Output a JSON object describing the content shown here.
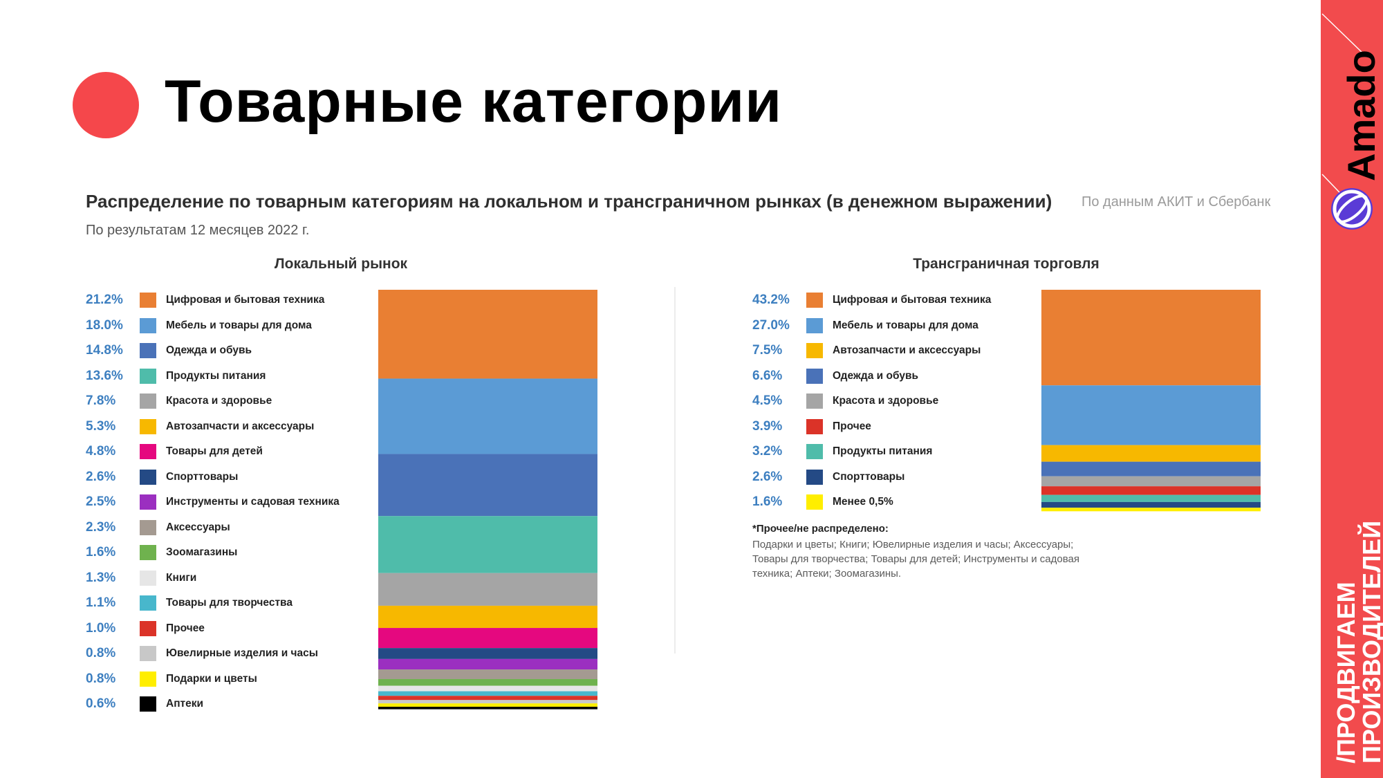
{
  "header": {
    "title": "Товарные категории",
    "subtitle": "Распределение по товарным категориям на локальном и трансграничном рынках (в денежном выражении)",
    "source": "По данным АКИТ и Сбербанк",
    "period": "По результатам 12 месяцев 2022 г."
  },
  "brand": {
    "logo_text": "Amado",
    "tagline_line1": "/ПРОДВИГАЕМ",
    "tagline_line2": "ПРОИЗВОДИТЕЛЕЙ",
    "accent_color": "#f24b4d"
  },
  "note": {
    "heading": "*Прочее/не распределено:",
    "body": "Подарки и цветы; Книги; Ювелирные изделия и часы; Аксессуары; Товары для творчества; Товары для детей; Инструменты и садовая техника; Аптеки; Зоомагазины."
  },
  "chart_data": [
    {
      "type": "bar",
      "stacked": true,
      "title": "Локальный рынок",
      "unit": "%",
      "series": [
        {
          "name": "Цифровая и бытовая техника",
          "value": 21.2,
          "label": "21.2%",
          "color": "#e97f33"
        },
        {
          "name": "Мебель и товары для дома",
          "value": 18.0,
          "label": "18.0%",
          "color": "#5b9bd5"
        },
        {
          "name": "Одежда и обувь",
          "value": 14.8,
          "label": "14.8%",
          "color": "#4a72b8"
        },
        {
          "name": "Продукты питания",
          "value": 13.6,
          "label": "13.6%",
          "color": "#4fbcaa"
        },
        {
          "name": "Красота и здоровье",
          "value": 7.8,
          "label": "7.8%",
          "color": "#a5a5a5"
        },
        {
          "name": "Автозапчасти и аксессуары",
          "value": 5.3,
          "label": "5.3%",
          "color": "#f7b800"
        },
        {
          "name": "Товары для детей",
          "value": 4.8,
          "label": "4.8%",
          "color": "#e5087f"
        },
        {
          "name": "Спорттовары",
          "value": 2.6,
          "label": "2.6%",
          "color": "#244a85"
        },
        {
          "name": "Инструменты и садовая техника",
          "value": 2.5,
          "label": "2.5%",
          "color": "#9b2fc0"
        },
        {
          "name": "Аксессуары",
          "value": 2.3,
          "label": "2.3%",
          "color": "#a49a91"
        },
        {
          "name": "Зоомагазины",
          "value": 1.6,
          "label": "1.6%",
          "color": "#6fb24e"
        },
        {
          "name": "Книги",
          "value": 1.3,
          "label": "1.3%",
          "color": "#e6e6e6"
        },
        {
          "name": "Товары для творчества",
          "value": 1.1,
          "label": "1.1%",
          "color": "#48b7cc"
        },
        {
          "name": "Прочее",
          "value": 1.0,
          "label": "1.0%",
          "color": "#db3328"
        },
        {
          "name": "Ювелирные изделия и часы",
          "value": 0.8,
          "label": "0.8%",
          "color": "#c8c8c8"
        },
        {
          "name": "Подарки и цветы",
          "value": 0.8,
          "label": "0.8%",
          "color": "#ffee00"
        },
        {
          "name": "Аптеки",
          "value": 0.6,
          "label": "0.6%",
          "color": "#000000"
        }
      ]
    },
    {
      "type": "bar",
      "stacked": true,
      "title": "Трансграничная торговля",
      "unit": "%",
      "series": [
        {
          "name": "Цифровая и бытовая техника",
          "value": 43.2,
          "label": "43.2%",
          "color": "#e97f33"
        },
        {
          "name": "Мебель и товары для дома",
          "value": 27.0,
          "label": "27.0%",
          "color": "#5b9bd5"
        },
        {
          "name": "Автозапчасти и аксессуары",
          "value": 7.5,
          "label": "7.5%",
          "color": "#f7b800"
        },
        {
          "name": "Одежда и обувь",
          "value": 6.6,
          "label": "6.6%",
          "color": "#4a72b8"
        },
        {
          "name": "Красота и здоровье",
          "value": 4.5,
          "label": "4.5%",
          "color": "#a5a5a5"
        },
        {
          "name": "Прочее",
          "value": 3.9,
          "label": "3.9%",
          "color": "#db3328"
        },
        {
          "name": "Продукты питания",
          "value": 3.2,
          "label": "3.2%",
          "color": "#4fbcaa"
        },
        {
          "name": "Спорттовары",
          "value": 2.6,
          "label": "2.6%",
          "color": "#244a85"
        },
        {
          "name": "Менее 0,5%",
          "value": 1.6,
          "label": "1.6%",
          "color": "#ffee00"
        }
      ]
    }
  ]
}
